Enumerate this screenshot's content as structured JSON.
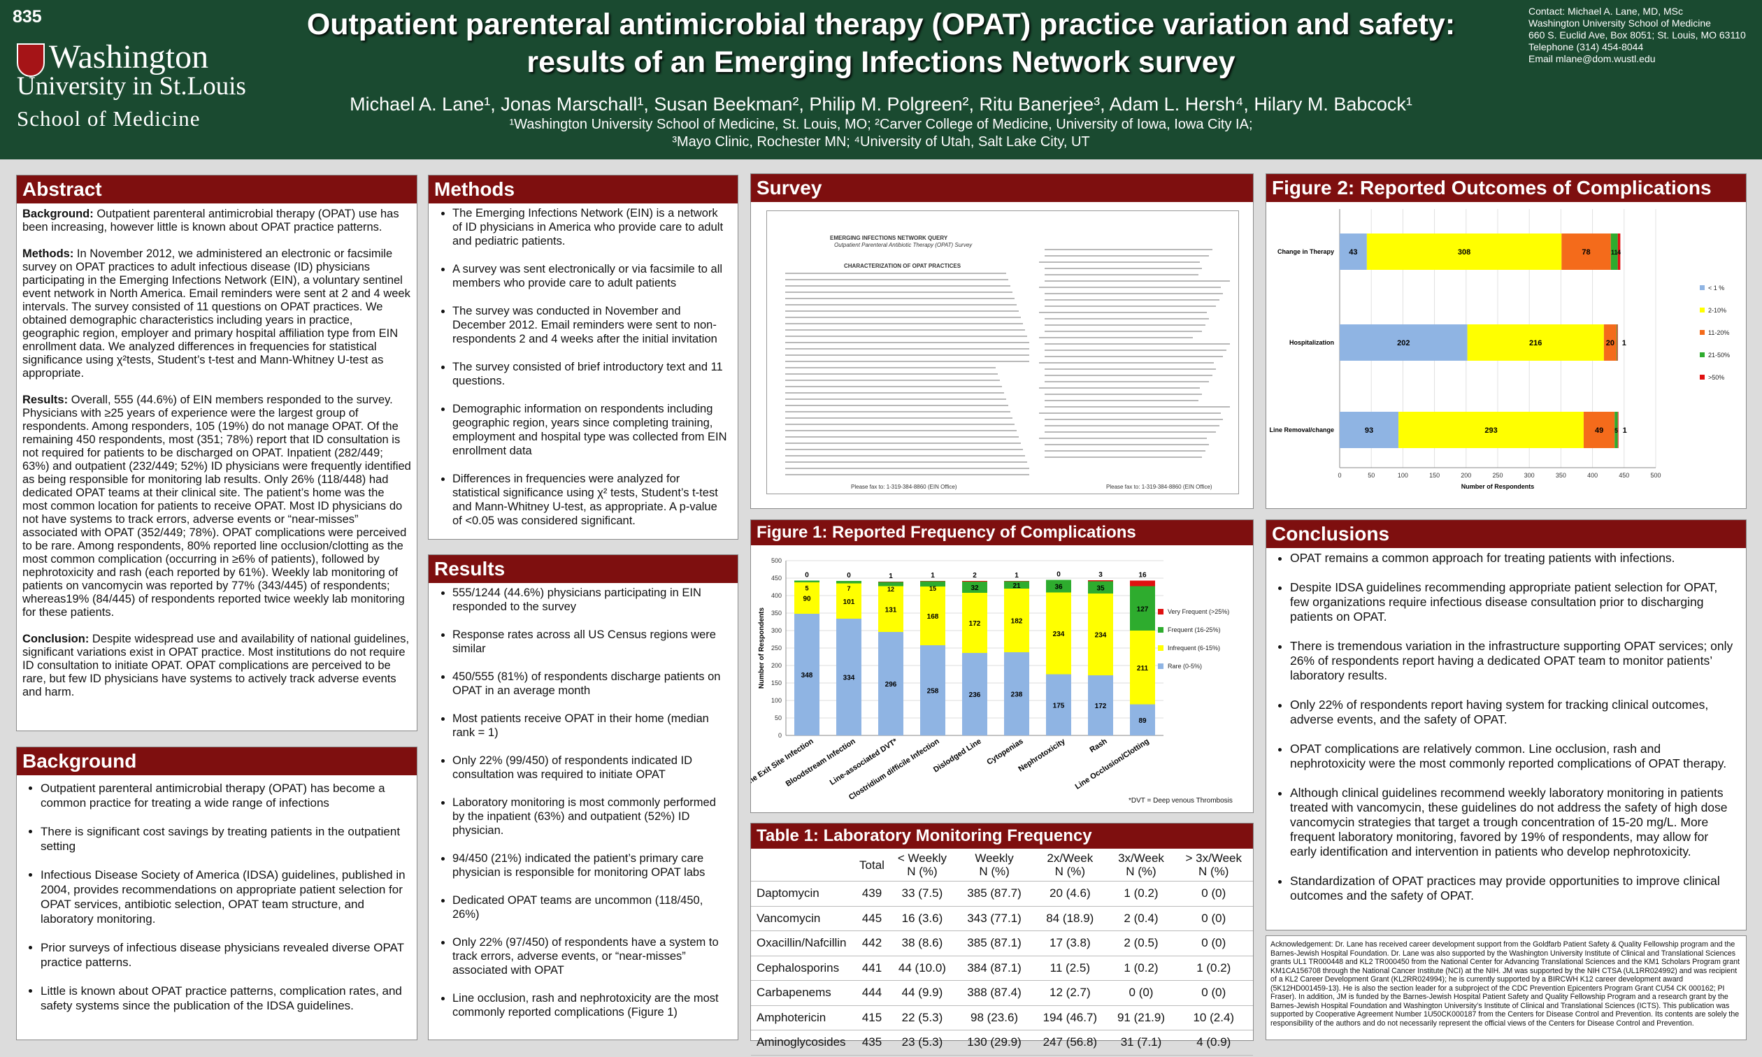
{
  "poster_number": "835",
  "logo": {
    "line1": "Washington",
    "line2": "University in St.Louis",
    "line3": "School of Medicine"
  },
  "title_line1": "Outpatient parenteral antimicrobial therapy (OPAT) practice variation and safety:",
  "title_line2": "results of an Emerging Infections Network survey",
  "authors": "Michael A. Lane¹, Jonas Marschall¹, Susan Beekman², Philip M. Polgreen², Ritu Banerjee³, Adam L. Hersh⁴, Hilary M. Babcock¹",
  "affiliations_1": "¹Washington University School of Medicine, St. Louis, MO; ²Carver College of Medicine, University of Iowa, Iowa City IA;",
  "affiliations_2": "³Mayo Clinic, Rochester MN; ⁴University of Utah, Salt Lake City, UT",
  "contact": [
    "Contact:  Michael A. Lane, MD, MSc",
    "Washington University School of Medicine",
    "660 S. Euclid Ave, Box 8051; St. Louis, MO 63110",
    "Telephone  (314) 454-8044",
    "Email mlane@dom.wustl.edu"
  ],
  "abstract": {
    "heading": "Abstract",
    "background_label": "Background:",
    "background": " Outpatient parenteral antimicrobial therapy (OPAT) use has been increasing, however little is known about OPAT practice patterns.",
    "methods_label": "Methods:",
    "methods": " In November 2012, we administered an electronic or facsimile survey on OPAT practices to adult infectious disease (ID) physicians participating in the Emerging Infections Network (EIN), a voluntary sentinel event network in North America. Email reminders were sent at 2 and 4 week intervals. The survey consisted of 11 questions on OPAT practices. We obtained demographic characteristics including years in practice, geographic region, employer and primary hospital affiliation type from EIN enrollment data. We analyzed differences in frequencies for statistical significance using χ²tests, Student’s t-test and Mann-Whitney U-test as appropriate.",
    "results_label": "Results:",
    "results": " Overall, 555 (44.6%) of EIN members responded to the survey. Physicians with ≥25 years of experience were the largest group of respondents. Among responders, 105 (19%) do not manage OPAT. Of the remaining 450 respondents, most (351; 78%) report that ID consultation is not required for patients to be discharged on OPAT. Inpatient (282/449; 63%) and outpatient (232/449; 52%) ID physicians were frequently identified as being responsible for monitoring lab results. Only 26% (118/448) had dedicated OPAT teams at their clinical site. The patient’s home was the most common location for patients to receive OPAT. Most ID physicians do not have systems to track errors, adverse events or “near-misses” associated with OPAT (352/449; 78%). OPAT complications were perceived to be rare. Among respondents, 80% reported line occlusion/clotting as the most common complication (occurring in ≥6% of patients), followed by nephrotoxicity and rash (each reported by 61%).  Weekly lab monitoring of patients on vancomycin was reported by 77% (343/445) of respondents; whereas19% (84/445)  of respondents reported twice weekly lab monitoring for these patients.",
    "conclusion_label": "Conclusion:",
    "conclusion": " Despite widespread use and availability of national guidelines, significant variations exist in OPAT practice. Most institutions do not require ID consultation to initiate OPAT. OPAT complications are perceived to be rare, but few ID physicians have systems to actively track adverse events and harm."
  },
  "background": {
    "heading": "Background",
    "items": [
      "Outpatient parenteral antimicrobial therapy (OPAT) has become a common practice for treating a wide range of infections",
      "There is significant cost savings by treating patients in the outpatient setting",
      "Infectious Disease Society of America (IDSA) guidelines, published in 2004, provides recommendations on appropriate patient selection for OPAT services, antibiotic selection, OPAT team structure, and laboratory monitoring.",
      "Prior surveys of infectious disease physicians revealed diverse OPAT practice patterns.",
      "Little is known about OPAT practice patterns, complication rates, and safety systems since the publication of the IDSA guidelines."
    ]
  },
  "methods": {
    "heading": "Methods",
    "items": [
      "The Emerging Infections Network (EIN) is a network of ID physicians in America who provide care to adult and pediatric patients.",
      "A survey was sent electronically or via facsimile to all members who provide care to adult patients",
      "The survey was conducted in November and December 2012. Email reminders were sent to non-respondents 2 and 4 weeks after the initial invitation",
      "The survey consisted of brief introductory text and 11 questions.",
      "Demographic information on respondents including geographic region, years since completing training, employment and hospital type was collected from EIN enrollment data",
      "Differences in frequencies were analyzed for statistical significance using χ² tests, Student’s t-test and Mann-Whitney U-test, as appropriate. A p-value of <0.05 was considered significant."
    ]
  },
  "results": {
    "heading": "Results",
    "items": [
      "555/1244 (44.6%) physicians participating in EIN responded to the survey",
      "Response rates across all US Census regions were similar",
      "450/555 (81%) of respondents discharge patients on OPAT in an average month",
      "Most patients receive OPAT in their home (median rank = 1)",
      "Only 22% (99/450) of respondents indicated ID consultation was required to initiate OPAT",
      "Laboratory monitoring is most commonly performed by the inpatient (63%) and outpatient (52%) ID physician.",
      "94/450 (21%) indicated the patient’s primary care physician is responsible for monitoring OPAT labs",
      "Dedicated OPAT teams are uncommon (118/450, 26%)",
      "Only 22% (97/450) of respondents have a system to track errors, adverse events, or “near-misses” associated with OPAT",
      "Line occlusion, rash and nephrotoxicity are the most commonly reported complications (Figure 1)"
    ]
  },
  "survey": {
    "heading": "Survey",
    "page1_title": "EMERGING INFECTIONS NETWORK QUERY",
    "page1_subtitle": "Outpatient Parenteral Antibiotic Therapy (OPAT) Survey",
    "page1_section": "CHARACTERIZATION OF OPAT PRACTICES",
    "footer": "Please fax to: 1-319-384-8860 (EIN Office)"
  },
  "figure1": {
    "heading": "Figure 1: Reported Frequency of Complications",
    "footnote": "*DVT =  Deep venous Thrombosis"
  },
  "figure2": {
    "heading": "Figure 2: Reported Outcomes of Complications"
  },
  "table1": {
    "heading": "Table 1: Laboratory Monitoring Frequency",
    "headers": [
      [
        "",
        ""
      ],
      [
        "Total",
        ""
      ],
      [
        "< Weekly",
        "N  (%)"
      ],
      [
        "Weekly",
        "N  (%)"
      ],
      [
        "2x/Week",
        "N  (%)"
      ],
      [
        "3x/Week",
        "N  (%)"
      ],
      [
        "> 3x/Week",
        "N  (%)"
      ]
    ],
    "rows": [
      [
        "Daptomycin",
        "439",
        "33  (7.5)",
        "385  (87.7)",
        "20  (4.6)",
        "1  (0.2)",
        "0  (0)"
      ],
      [
        "Vancomycin",
        "445",
        "16  (3.6)",
        "343 (77.1)",
        "84  (18.9)",
        "2  (0.4)",
        "0  (0)"
      ],
      [
        "Oxacillin/Nafcillin",
        "442",
        "38  (8.6)",
        "385  (87.1)",
        "17  (3.8)",
        "2  (0.5)",
        "0  (0)"
      ],
      [
        "Cephalosporins",
        "441",
        "44 (10.0)",
        "384  (87.1)",
        "11  (2.5)",
        "1  (0.2)",
        "1  (0.2)"
      ],
      [
        "Carbapenems",
        "444",
        "44  (9.9)",
        "388  (87.4)",
        "12  (2.7)",
        "0   (0)",
        "0  (0)"
      ],
      [
        "Amphotericin",
        "415",
        "22  (5.3)",
        "98  (23.6)",
        "194  (46.7)",
        "91  (21.9)",
        "10  (2.4)"
      ],
      [
        "Aminoglycosides",
        "435",
        "23  (5.3)",
        "130  (29.9)",
        "247  (56.8)",
        "31  (7.1)",
        "4  (0.9)"
      ]
    ]
  },
  "conclusions": {
    "heading": "Conclusions",
    "items": [
      "OPAT remains a common approach for treating patients with infections.",
      "Despite IDSA guidelines recommending appropriate patient selection for OPAT, few organizations require infectious disease consultation prior to discharging patients on OPAT.",
      "There is tremendous variation in the infrastructure supporting OPAT services; only 26% of respondents report having a dedicated OPAT team to monitor patients’ laboratory results.",
      "Only 22% of respondents report having system for tracking clinical outcomes, adverse events, and the safety of OPAT.",
      "OPAT complications are relatively common. Line occlusion, rash and nephrotoxicity were the most commonly reported complications of OPAT therapy.",
      "Although clinical guidelines recommend weekly laboratory monitoring in patients treated with vancomycin, these guidelines do not address the safety of high dose vancomycin strategies that target a trough concentration of 15-20 mg/L. More frequent laboratory monitoring, favored by 19% of respondents, may allow for early identification and intervention in patients who develop nephrotoxicity.",
      "Standardization of OPAT practices may provide opportunities to improve clinical outcomes and the safety of OPAT."
    ]
  },
  "acknowledgement": "Acknowledgement: Dr. Lane has received career development support from the Goldfarb Patient Safety & Quality Fellowship program and the Barnes-Jewish Hospital Foundation. Dr. Lane was also supported by the Washington University Institute of Clinical and Translational Sciences grants UL1 TR000448 and KL2 TR000450 from the National Center for Advancing Translational Sciences and the KM1 Scholars Program grant KM1CA156708 through the National Cancer Institute (NCI) at the NIH. JM was supported by the NIH CTSA (UL1RR024992) and was recipient of a KL2 Career Development Grant (KL2RR024994); he is currently supported by a BIRCWH K12 career development award (5K12HD001459-13). He is also the section leader for a subproject of the CDC Prevention Epicenters Program Grant CU54 CK 000162; PI Fraser). In addition, JM is funded by the Barnes-Jewish Hospital Patient Safety and Quality Fellowship Program and a research grant by the Barnes-Jewish Hospital Foundation and Washington University’s Institute of Clinical and Translational Sciences (ICTS). This publication was supported by Cooperative Agreement Number 1U50CK000187 from the Centers for Disease Control and Prevention. Its contents are solely the responsibility of the authors and do not necessarily represent the official views of the Centers for Disease Control and Prevention.",
  "colors": {
    "rare": "#8fb4e3",
    "infrequent": "#ffff00",
    "frequent": "#2eac2e",
    "very_frequent": "#e01010",
    "c11_20": "#f46b1b",
    "c21_50": "#2eac2e",
    "c50": "#e01010"
  },
  "chart_data": [
    {
      "type": "bar",
      "stacked": true,
      "title": "Figure 1: Reported Frequency of Complications",
      "ylabel": "Number of Respondents",
      "ylim": [
        0,
        500
      ],
      "yticks": [
        0,
        50,
        100,
        150,
        200,
        250,
        300,
        350,
        400,
        450,
        500
      ],
      "categories": [
        "Line Exit Site Infection",
        "Bloodstream Infection",
        "Line-associated DVT*",
        "Clostridium difficile Infection",
        "Dislodged Line",
        "Cytopenias",
        "Nephrotoxicity",
        "Rash",
        "Line Occlusion/Clotting"
      ],
      "series": [
        {
          "name": "Rare (0-5%)",
          "values": [
            348,
            334,
            296,
            258,
            236,
            238,
            175,
            172,
            89
          ]
        },
        {
          "name": "Infrequent (6-15%)",
          "values": [
            90,
            101,
            131,
            168,
            172,
            182,
            234,
            234,
            211
          ]
        },
        {
          "name": "Frequent (16-25%)",
          "values": [
            5,
            7,
            12,
            15,
            32,
            21,
            36,
            35,
            127
          ]
        },
        {
          "name": "Very Frequent (>25%)",
          "values": [
            0,
            0,
            1,
            1,
            2,
            1,
            0,
            3,
            16
          ]
        }
      ]
    },
    {
      "type": "bar",
      "orientation": "horizontal",
      "stacked": true,
      "title": "Figure 2: Reported Outcomes of Complications",
      "xlabel": "Number of Respondents",
      "xlim": [
        0,
        500
      ],
      "xticks": [
        0,
        50,
        100,
        150,
        200,
        250,
        300,
        350,
        400,
        450,
        500
      ],
      "categories": [
        "Change in Therapy",
        "Hospitalization",
        "Line Removal/change"
      ],
      "series": [
        {
          "name": "< 1 %",
          "values": [
            43,
            202,
            93
          ]
        },
        {
          "name": "2-10%",
          "values": [
            308,
            216,
            293
          ]
        },
        {
          "name": "11-20%",
          "values": [
            78,
            20,
            49
          ]
        },
        {
          "name": "21-50%",
          "values": [
            11,
            1,
            5
          ]
        },
        {
          "name": ">50%",
          "values": [
            4,
            1,
            1
          ]
        }
      ],
      "labels": [
        [
          "43",
          "308",
          "78",
          "11",
          "4"
        ],
        [
          "202",
          "216",
          "20",
          "",
          ""
        ],
        [
          "93",
          "293",
          "49",
          "5",
          ""
        ]
      ],
      "outside_labels": [
        "",
        "1",
        "1"
      ]
    }
  ]
}
